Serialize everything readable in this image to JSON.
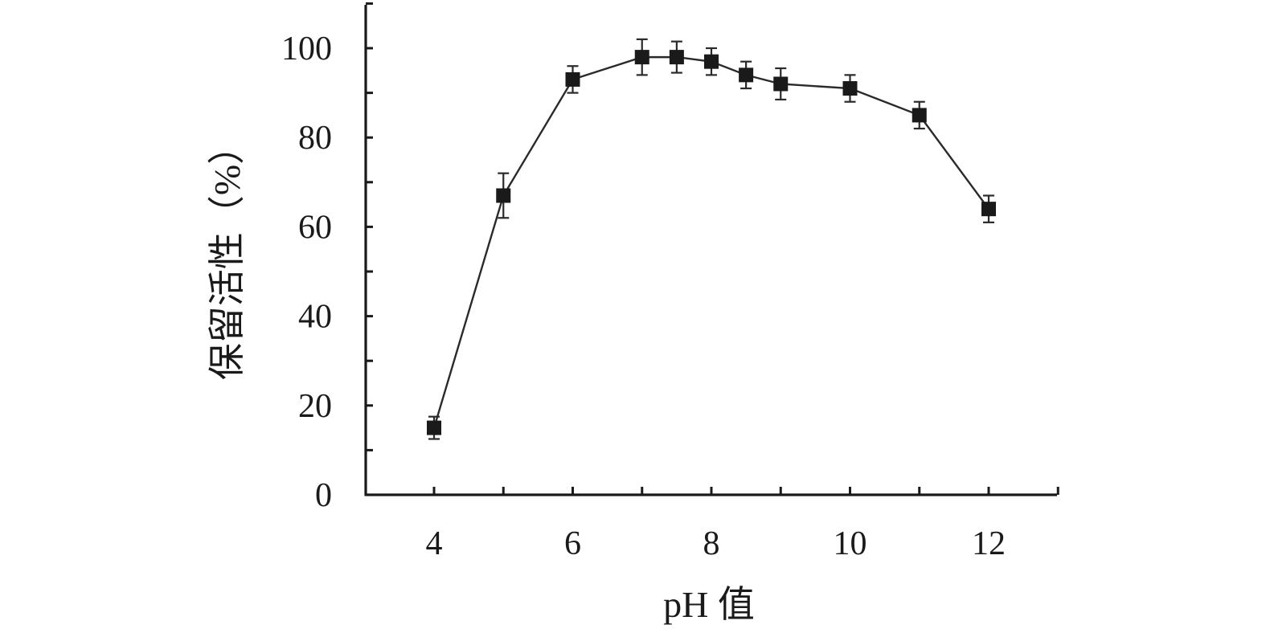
{
  "chart_data": {
    "type": "line",
    "xlabel": "pH 值",
    "ylabel": "保留活性（%）",
    "xlim": [
      3,
      13
    ],
    "ylim": [
      0,
      110
    ],
    "xticks": [
      4,
      6,
      8,
      10,
      12
    ],
    "yticks": [
      0,
      20,
      40,
      60,
      80,
      100
    ],
    "grid": false,
    "marker": "square",
    "series": [
      {
        "x": [
          4,
          5,
          6,
          7,
          7.5,
          8,
          8.5,
          9,
          10,
          11,
          12
        ],
        "values": [
          15,
          67,
          93,
          98,
          98,
          97,
          94,
          92,
          91,
          85,
          64
        ],
        "error": [
          2.5,
          5,
          3,
          4,
          3.5,
          3,
          3,
          3.5,
          3,
          3,
          3
        ]
      }
    ]
  }
}
